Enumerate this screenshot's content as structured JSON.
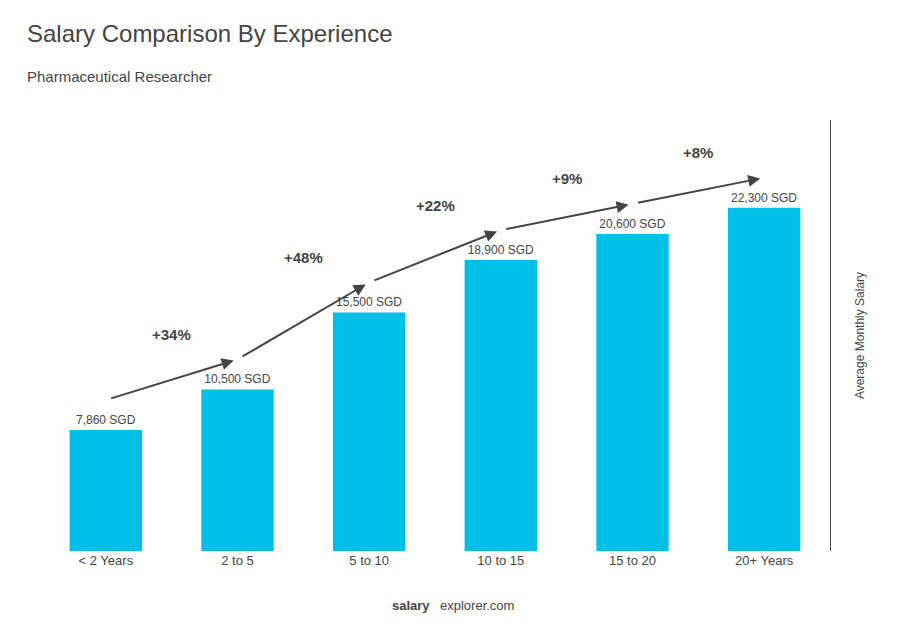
{
  "chart_data": {
    "type": "bar",
    "title": "Salary Comparison By Experience",
    "subtitle": "Pharmaceutical Researcher",
    "categories": [
      "< 2 Years",
      "2 to 5",
      "5 to 10",
      "10 to 15",
      "15 to 20",
      "20+ Years"
    ],
    "values": [
      7860,
      10500,
      15500,
      18900,
      20600,
      22300
    ],
    "value_labels": [
      "7,860 SGD",
      "10,500 SGD",
      "15,500 SGD",
      "18,900 SGD",
      "20,600 SGD",
      "22,300 SGD"
    ],
    "data_labels": true,
    "annotations": [
      "+34%",
      "+48%",
      "+22%",
      "+9%",
      "+8%"
    ],
    "ylabel": "Average Monthly Salary",
    "watermark": [
      "salary",
      "explorer.com"
    ],
    "color": "#00c0e8",
    "ylim": [
      0,
      28000
    ],
    "grid": false,
    "tick_labels": "x"
  }
}
